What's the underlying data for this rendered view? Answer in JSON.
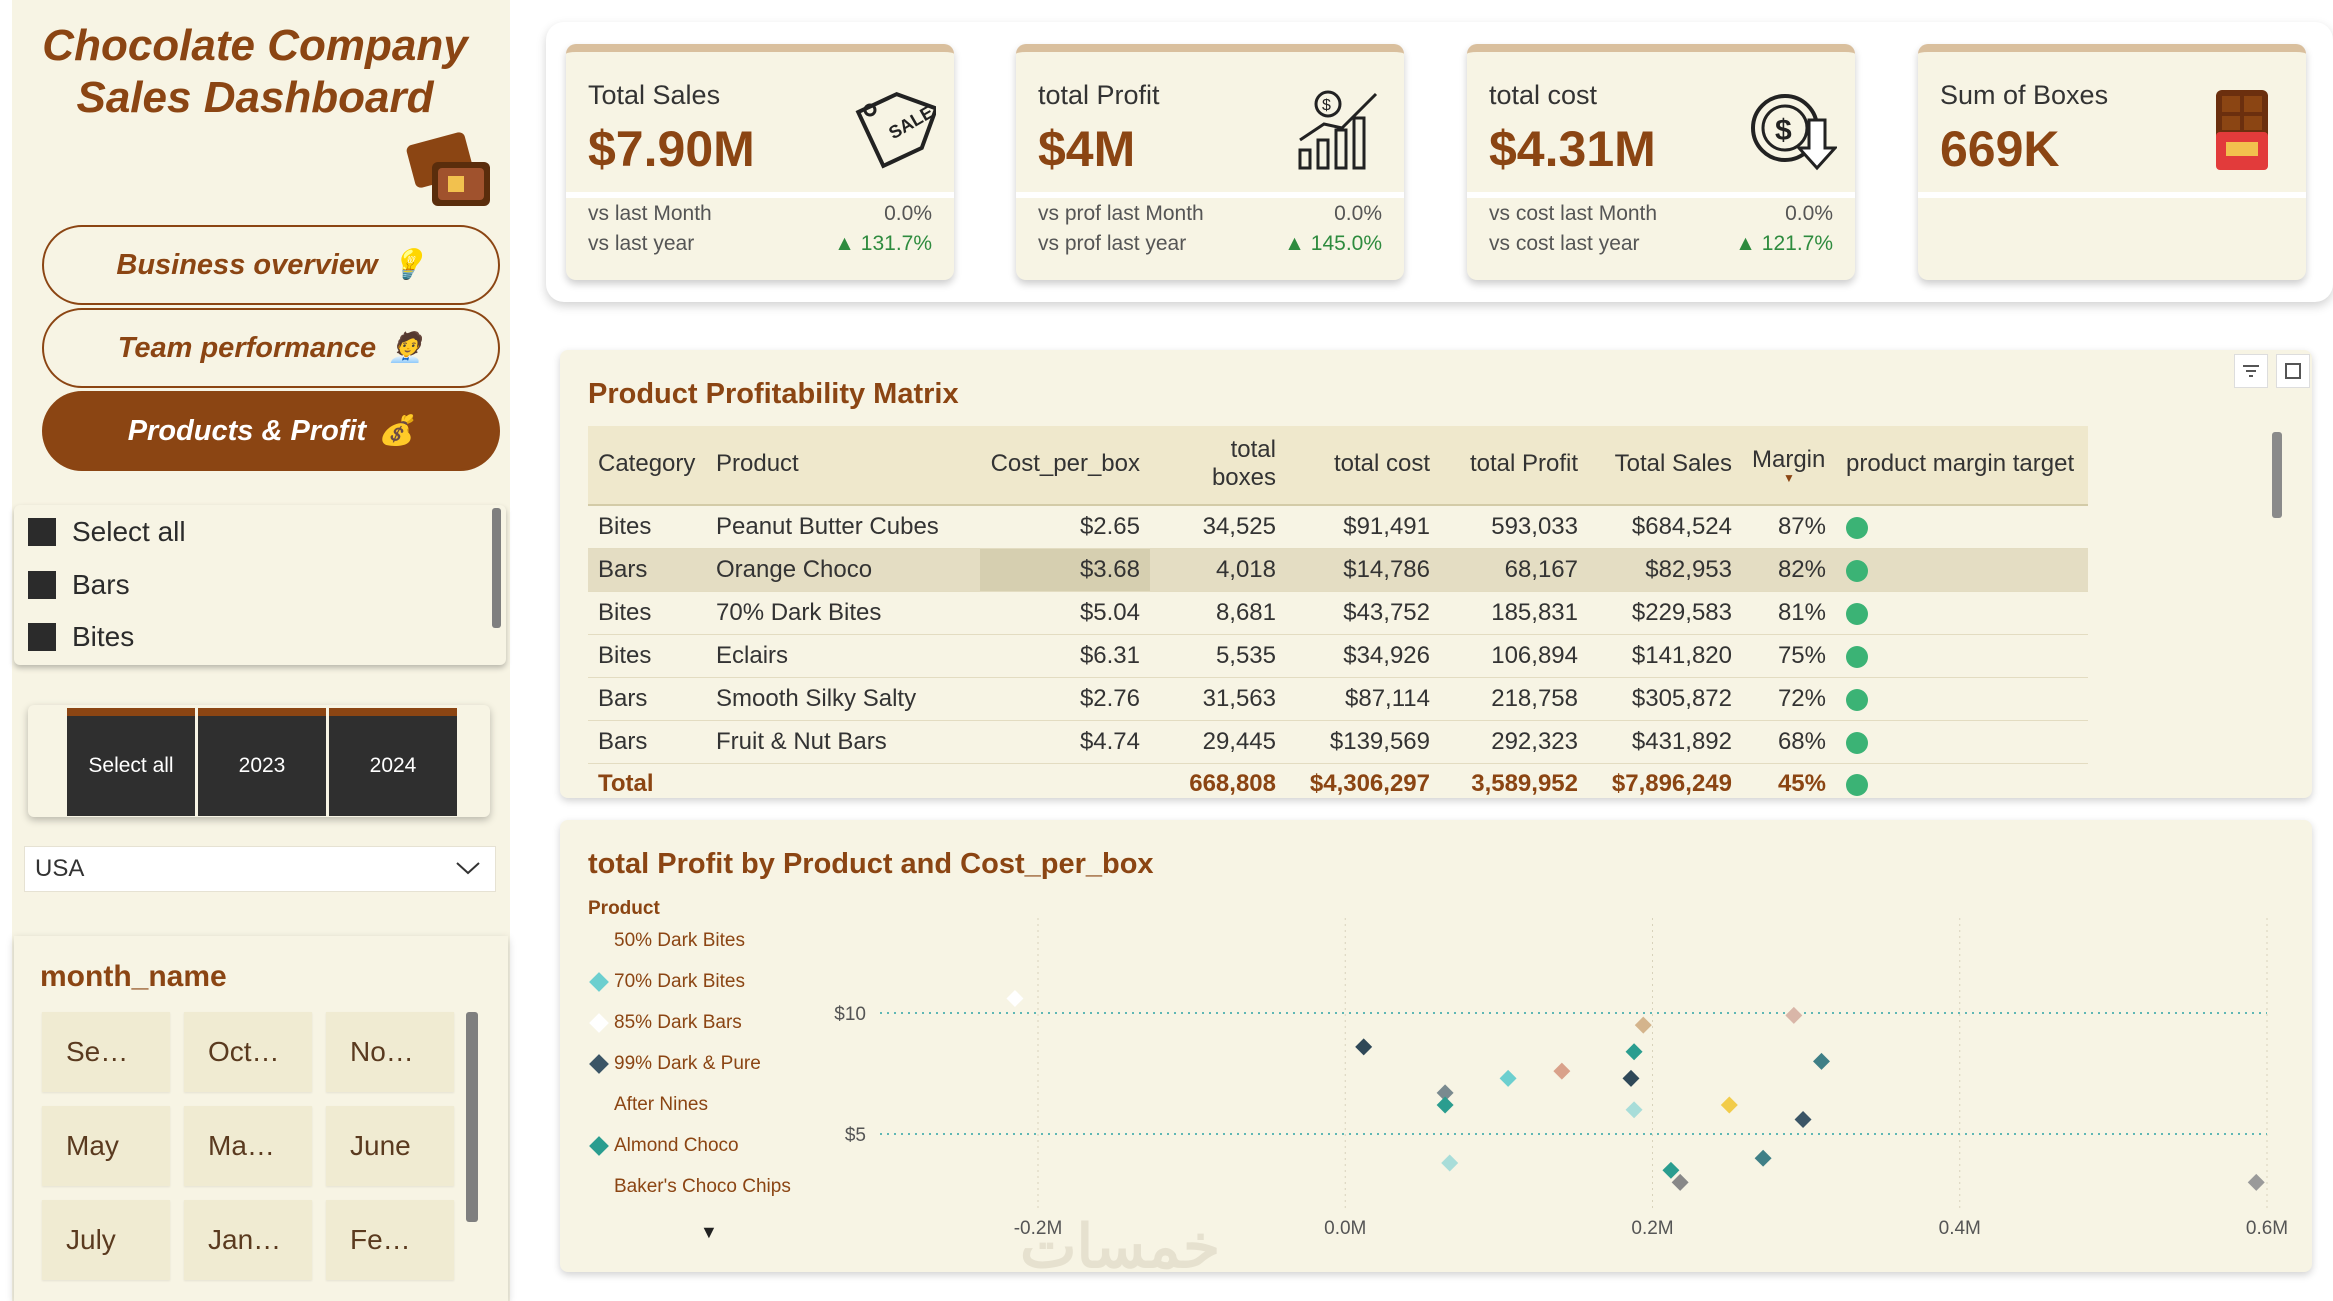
{
  "sidebar": {
    "title_line1": "Chocolate Company",
    "title_line2": "Sales Dashboard",
    "nav": [
      {
        "label": "Business overview",
        "icon": "bulb-icon"
      },
      {
        "label": "Team performance",
        "icon": "person-icon"
      },
      {
        "label": "Products & Profit",
        "icon": "money-bag-icon"
      }
    ],
    "category_slicer": [
      "Select all",
      "Bars",
      "Bites"
    ],
    "year_slicer": [
      "Select all",
      "2023",
      "2024"
    ],
    "country": "USA",
    "month_title": "month_name",
    "months": [
      "Se…",
      "Oct…",
      "No…",
      "May",
      "Ma…",
      "June",
      "July",
      "Jan…",
      "Fe…"
    ]
  },
  "kpis": [
    {
      "label": "Total Sales",
      "value": "$7.90M",
      "row1_label": "vs last Month",
      "row1_value": "0.0%",
      "row2_label": "vs last year",
      "row2_value": "▲ 131.7%",
      "icon": "sale-tag-icon"
    },
    {
      "label": "total Profit",
      "value": "$4M",
      "row1_label": "vs prof last Month",
      "row1_value": "0.0%",
      "row2_label": "vs prof last year",
      "row2_value": "▲ 145.0%",
      "icon": "growth-chart-icon"
    },
    {
      "label": "total cost",
      "value": "$4.31M",
      "row1_label": "vs cost last Month",
      "row1_value": "0.0%",
      "row2_label": "vs cost last year",
      "row2_value": "▲ 121.7%",
      "icon": "dollar-down-icon"
    },
    {
      "label": "Sum of Boxes",
      "value": "669K",
      "icon": "chocolate-bar-icon"
    }
  ],
  "matrix": {
    "title": "Product Profitability Matrix",
    "headers": [
      "Category",
      "Product",
      "Cost_per_box",
      "total boxes",
      "total cost",
      "total Profit",
      "Total Sales",
      "Margin",
      "product margin target"
    ],
    "rows": [
      [
        "Bites",
        "Peanut Butter Cubes",
        "$2.65",
        "34,525",
        "$91,491",
        "593,033",
        "$684,524",
        "87%"
      ],
      [
        "Bars",
        "Orange Choco",
        "$3.68",
        "4,018",
        "$14,786",
        "68,167",
        "$82,953",
        "82%"
      ],
      [
        "Bites",
        "70% Dark Bites",
        "$5.04",
        "8,681",
        "$43,752",
        "185,831",
        "$229,583",
        "81%"
      ],
      [
        "Bites",
        "Eclairs",
        "$6.31",
        "5,535",
        "$34,926",
        "106,894",
        "$141,820",
        "75%"
      ],
      [
        "Bars",
        "Smooth Silky Salty",
        "$2.76",
        "31,563",
        "$87,114",
        "218,758",
        "$305,872",
        "72%"
      ],
      [
        "Bars",
        "Fruit & Nut Bars",
        "$4.74",
        "29,445",
        "$139,569",
        "292,323",
        "$431,892",
        "68%"
      ]
    ],
    "total": [
      "Total",
      "",
      "",
      "668,808",
      "$4,306,297",
      "3,589,952",
      "$7,896,249",
      "45%"
    ],
    "dot_color": "#3bb375"
  },
  "scatter": {
    "title": "total Profit by Product and Cost_per_box",
    "legend_title": "Product",
    "legend": [
      {
        "name": "50% Dark Bites",
        "color": ""
      },
      {
        "name": "70% Dark Bites",
        "color": "#6ccfcf"
      },
      {
        "name": "85% Dark Bars",
        "color": "#ffffff"
      },
      {
        "name": "99% Dark & Pure",
        "color": "#3b5566"
      },
      {
        "name": "After Nines",
        "color": ""
      },
      {
        "name": "Almond Choco",
        "color": "#2a9d8f"
      },
      {
        "name": "Baker's Choco Chips",
        "color": ""
      }
    ]
  },
  "chart_data": {
    "type": "scatter",
    "title": "total Profit by Product and Cost_per_box",
    "xlabel": "",
    "ylabel": "",
    "x_ticks": [
      "-0.2M",
      "0.0M",
      "0.2M",
      "0.4M",
      "0.6M"
    ],
    "y_ticks": [
      "$5",
      "$10"
    ],
    "xlim": [
      -0.2,
      0.6
    ],
    "ylim": [
      2.5,
      11
    ],
    "grid": true,
    "points": [
      {
        "x": -0.215,
        "y": 10.6,
        "color": "#ffffff"
      },
      {
        "x": 0.012,
        "y": 8.6,
        "color": "#2f4858"
      },
      {
        "x": 0.065,
        "y": 6.7,
        "color": "#7a8a8f"
      },
      {
        "x": 0.065,
        "y": 6.2,
        "color": "#2a9d8f"
      },
      {
        "x": 0.068,
        "y": 3.8,
        "color": "#a8ddd9"
      },
      {
        "x": 0.106,
        "y": 7.3,
        "color": "#6ccfcf"
      },
      {
        "x": 0.141,
        "y": 7.6,
        "color": "#d9a18a"
      },
      {
        "x": 0.186,
        "y": 7.3,
        "color": "#2f4858"
      },
      {
        "x": 0.188,
        "y": 8.4,
        "color": "#2a9d8f"
      },
      {
        "x": 0.188,
        "y": 6.0,
        "color": "#a8ddd9"
      },
      {
        "x": 0.194,
        "y": 9.5,
        "color": "#d4b48c"
      },
      {
        "x": 0.212,
        "y": 3.5,
        "color": "#2a9d8f"
      },
      {
        "x": 0.218,
        "y": 3.0,
        "color": "#888888"
      },
      {
        "x": 0.25,
        "y": 6.2,
        "color": "#f2cc4a"
      },
      {
        "x": 0.272,
        "y": 4.0,
        "color": "#3f7f86"
      },
      {
        "x": 0.292,
        "y": 9.9,
        "color": "#d9b6a8"
      },
      {
        "x": 0.298,
        "y": 5.6,
        "color": "#3b5566"
      },
      {
        "x": 0.31,
        "y": 8.0,
        "color": "#3f7f86"
      },
      {
        "x": 0.593,
        "y": 3.0,
        "color": "#9a9a9a"
      }
    ]
  }
}
